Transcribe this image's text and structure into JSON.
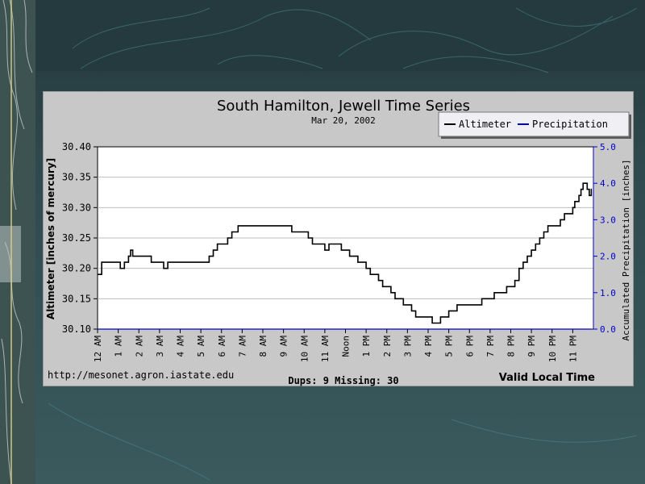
{
  "chart_data": {
    "type": "line",
    "title": "South Hamilton, Jewell Time Series",
    "subtitle": "Mar 20, 2002",
    "xlabel": "Valid Local Time",
    "ylabel": "Altimeter [inches of mercury]",
    "y2label": "Accumulated Precipitation [inches]",
    "categories": [
      "12 AM",
      "1 AM",
      "2 AM",
      "3 AM",
      "4 AM",
      "5 AM",
      "6 AM",
      "7 AM",
      "8 AM",
      "9 AM",
      "10 AM",
      "11 AM",
      "Noon",
      "1 PM",
      "2 PM",
      "3 PM",
      "4 PM",
      "5 PM",
      "6 PM",
      "7 PM",
      "8 PM",
      "9 PM",
      "10 PM",
      "11 PM"
    ],
    "ylim": [
      30.1,
      30.4
    ],
    "yticks": [
      "30.10",
      "30.15",
      "30.20",
      "30.25",
      "30.30",
      "30.35",
      "30.40"
    ],
    "y2lim": [
      0.0,
      5.0
    ],
    "y2ticks": [
      "0.0",
      "1.0",
      "2.0",
      "3.0",
      "4.0",
      "5.0"
    ],
    "grid": true,
    "legend_position": "top-right",
    "series": [
      {
        "name": "Altimeter",
        "color": "#000000",
        "axis": "left",
        "x": [
          0,
          0.2,
          0.4,
          0.8,
          1.1,
          1.3,
          1.5,
          1.6,
          1.7,
          1.8,
          2.0,
          2.3,
          2.6,
          3.0,
          3.2,
          3.4,
          3.6,
          3.8,
          4.2,
          4.6,
          5.0,
          5.2,
          5.4,
          5.6,
          5.8,
          5.95,
          6.1,
          6.3,
          6.5,
          6.7,
          6.8,
          6.9,
          7.0,
          7.2,
          7.6,
          8.0,
          8.4,
          8.8,
          9.0,
          9.2,
          9.4,
          9.8,
          10.2,
          10.4,
          10.6,
          10.8,
          11.0,
          11.2,
          11.4,
          11.8,
          12.0,
          12.2,
          12.4,
          12.6,
          12.8,
          13.0,
          13.2,
          13.4,
          13.6,
          13.8,
          14.0,
          14.2,
          14.4,
          14.6,
          14.8,
          15.0,
          15.2,
          15.4,
          15.6,
          15.8,
          16.0,
          16.2,
          16.4,
          16.6,
          16.8,
          17.0,
          17.2,
          17.4,
          17.8,
          18.2,
          18.4,
          18.6,
          18.8,
          19.0,
          19.2,
          19.4,
          19.6,
          19.8,
          20.0,
          20.2,
          20.4,
          20.6,
          20.8,
          21.0,
          21.2,
          21.4,
          21.6,
          21.8,
          22.0,
          22.2,
          22.4,
          22.6,
          22.8,
          23.0,
          23.1,
          23.2,
          23.3,
          23.4,
          23.5,
          23.6,
          23.7,
          23.8,
          23.9
        ],
        "values": [
          30.19,
          30.21,
          30.21,
          30.21,
          30.2,
          30.21,
          30.22,
          30.23,
          30.22,
          30.22,
          30.22,
          30.22,
          30.21,
          30.21,
          30.2,
          30.21,
          30.21,
          30.21,
          30.21,
          30.21,
          30.21,
          30.21,
          30.22,
          30.23,
          30.24,
          30.24,
          30.24,
          30.25,
          30.26,
          30.26,
          30.27,
          30.27,
          30.27,
          30.27,
          30.27,
          30.27,
          30.27,
          30.27,
          30.27,
          30.27,
          30.26,
          30.26,
          30.25,
          30.24,
          30.24,
          30.24,
          30.23,
          30.24,
          30.24,
          30.23,
          30.23,
          30.22,
          30.22,
          30.21,
          30.21,
          30.2,
          30.19,
          30.19,
          30.18,
          30.17,
          30.17,
          30.16,
          30.15,
          30.15,
          30.14,
          30.14,
          30.13,
          30.12,
          30.12,
          30.12,
          30.12,
          30.11,
          30.11,
          30.12,
          30.12,
          30.13,
          30.13,
          30.14,
          30.14,
          30.14,
          30.14,
          30.15,
          30.15,
          30.15,
          30.16,
          30.16,
          30.16,
          30.17,
          30.17,
          30.18,
          30.2,
          30.21,
          30.22,
          30.23,
          30.24,
          30.25,
          30.26,
          30.27,
          30.27,
          30.27,
          30.28,
          30.29,
          30.29,
          30.3,
          30.31,
          30.31,
          30.32,
          30.33,
          30.34,
          30.34,
          30.33,
          30.32,
          30.33
        ]
      },
      {
        "name": "Precipitation",
        "color": "#0000cc",
        "axis": "right",
        "x": [
          0,
          23.9
        ],
        "values": [
          0.0,
          0.0
        ]
      }
    ],
    "footer_left": "http://mesonet.agron.iastate.edu",
    "footer_center": "Dups: 9 Missing: 30"
  }
}
